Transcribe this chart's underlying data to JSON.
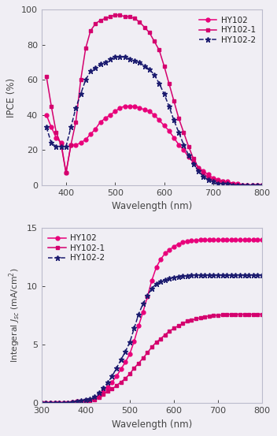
{
  "top": {
    "xlabel": "Wavelength (nm)",
    "ylabel": "IPCE (%)",
    "xlim": [
      350,
      800
    ],
    "ylim": [
      0,
      100
    ],
    "xticks": [
      400,
      500,
      600,
      700,
      800
    ],
    "yticks": [
      0,
      20,
      40,
      60,
      80,
      100
    ],
    "HY102": {
      "x": [
        360,
        370,
        380,
        390,
        400,
        410,
        420,
        430,
        440,
        450,
        460,
        470,
        480,
        490,
        500,
        510,
        520,
        530,
        540,
        550,
        560,
        570,
        580,
        590,
        600,
        610,
        620,
        630,
        640,
        650,
        660,
        670,
        680,
        690,
        700,
        710,
        720,
        730,
        740,
        750,
        760,
        770,
        780,
        790,
        800
      ],
      "y": [
        40,
        33,
        27,
        24,
        7,
        23,
        23,
        24,
        26,
        29,
        32,
        36,
        38,
        40,
        42,
        44,
        45,
        45,
        45,
        44,
        43,
        42,
        40,
        37,
        34,
        31,
        27,
        23,
        20,
        16,
        13,
        10,
        8,
        6,
        4,
        3,
        2,
        2,
        1,
        1,
        0,
        0,
        0,
        0,
        0
      ],
      "color": "#e8007a",
      "marker": "o",
      "linestyle": "-"
    },
    "HY102_1": {
      "x": [
        360,
        370,
        380,
        390,
        400,
        410,
        420,
        430,
        440,
        450,
        460,
        470,
        480,
        490,
        500,
        510,
        520,
        530,
        540,
        550,
        560,
        570,
        580,
        590,
        600,
        610,
        620,
        630,
        640,
        650,
        660,
        670,
        680,
        690,
        700,
        710,
        720,
        730,
        740,
        750,
        760,
        770,
        780,
        790,
        800
      ],
      "y": [
        62,
        45,
        30,
        23,
        7,
        23,
        36,
        60,
        78,
        88,
        92,
        94,
        95,
        96,
        97,
        97,
        96,
        96,
        95,
        93,
        90,
        87,
        82,
        77,
        68,
        58,
        48,
        38,
        30,
        22,
        15,
        10,
        7,
        4,
        3,
        2,
        2,
        1,
        1,
        0,
        0,
        0,
        0,
        0,
        0
      ],
      "color": "#d4006e",
      "marker": "s",
      "linestyle": "-"
    },
    "HY102_2": {
      "x": [
        360,
        370,
        380,
        390,
        400,
        410,
        420,
        430,
        440,
        450,
        460,
        470,
        480,
        490,
        500,
        510,
        520,
        530,
        540,
        550,
        560,
        570,
        580,
        590,
        600,
        610,
        620,
        630,
        640,
        650,
        660,
        670,
        680,
        690,
        700,
        710,
        720,
        730,
        740,
        750,
        760,
        770,
        780,
        790,
        800
      ],
      "y": [
        33,
        24,
        22,
        22,
        22,
        33,
        44,
        52,
        60,
        65,
        67,
        69,
        70,
        72,
        73,
        73,
        73,
        72,
        71,
        70,
        68,
        66,
        63,
        58,
        52,
        45,
        37,
        30,
        23,
        17,
        12,
        8,
        5,
        3,
        2,
        1,
        1,
        1,
        0,
        0,
        0,
        0,
        0,
        0,
        0
      ],
      "color": "#1a1a6e",
      "marker": "*",
      "linestyle": "--"
    }
  },
  "bottom": {
    "xlabel": "Wavelength (nm)",
    "ylabel": "Integeral $J_{sc}$ (mA/cm$^2$)",
    "xlim": [
      300,
      800
    ],
    "ylim": [
      0,
      15
    ],
    "xticks": [
      300,
      400,
      500,
      600,
      700,
      800
    ],
    "yticks": [
      0,
      5,
      10,
      15
    ],
    "HY102": {
      "x": [
        300,
        310,
        320,
        330,
        340,
        350,
        360,
        370,
        380,
        390,
        400,
        410,
        420,
        430,
        440,
        450,
        460,
        470,
        480,
        490,
        500,
        510,
        520,
        530,
        540,
        550,
        560,
        570,
        580,
        590,
        600,
        610,
        620,
        630,
        640,
        650,
        660,
        670,
        680,
        690,
        700,
        710,
        720,
        730,
        740,
        750,
        760,
        770,
        780,
        790,
        800
      ],
      "y": [
        0,
        0,
        0,
        0,
        0,
        0.02,
        0.05,
        0.1,
        0.15,
        0.18,
        0.2,
        0.25,
        0.4,
        0.65,
        1.0,
        1.35,
        1.8,
        2.3,
        2.9,
        3.5,
        4.2,
        5.3,
        6.6,
        7.8,
        9.1,
        10.5,
        11.6,
        12.3,
        12.8,
        13.1,
        13.4,
        13.6,
        13.75,
        13.85,
        13.9,
        13.93,
        13.95,
        13.95,
        13.95,
        13.95,
        13.95,
        13.95,
        13.95,
        13.95,
        13.95,
        13.95,
        13.95,
        13.95,
        13.95,
        13.95,
        13.95
      ],
      "color": "#e8007a",
      "marker": "o",
      "linestyle": "-"
    },
    "HY102_1": {
      "x": [
        300,
        310,
        320,
        330,
        340,
        350,
        360,
        370,
        380,
        390,
        400,
        410,
        420,
        430,
        440,
        450,
        460,
        470,
        480,
        490,
        500,
        510,
        520,
        530,
        540,
        550,
        560,
        570,
        580,
        590,
        600,
        610,
        620,
        630,
        640,
        650,
        660,
        670,
        680,
        690,
        700,
        710,
        720,
        730,
        740,
        750,
        760,
        770,
        780,
        790,
        800
      ],
      "y": [
        0,
        0,
        0,
        0,
        0,
        0.02,
        0.04,
        0.08,
        0.12,
        0.15,
        0.2,
        0.22,
        0.3,
        0.5,
        0.75,
        1.0,
        1.2,
        1.5,
        1.8,
        2.1,
        2.5,
        3.0,
        3.4,
        3.85,
        4.3,
        4.8,
        5.2,
        5.5,
        5.85,
        6.15,
        6.4,
        6.6,
        6.8,
        7.0,
        7.1,
        7.2,
        7.3,
        7.4,
        7.45,
        7.5,
        7.5,
        7.55,
        7.6,
        7.6,
        7.6,
        7.6,
        7.6,
        7.6,
        7.6,
        7.6,
        7.6
      ],
      "color": "#d4006e",
      "marker": "s",
      "linestyle": "-"
    },
    "HY102_2": {
      "x": [
        300,
        310,
        320,
        330,
        340,
        350,
        360,
        370,
        380,
        390,
        400,
        410,
        420,
        430,
        440,
        450,
        460,
        470,
        480,
        490,
        500,
        510,
        520,
        530,
        540,
        550,
        560,
        570,
        580,
        590,
        600,
        610,
        620,
        630,
        640,
        650,
        660,
        670,
        680,
        690,
        700,
        710,
        720,
        730,
        740,
        750,
        760,
        770,
        780,
        790,
        800
      ],
      "y": [
        0,
        0,
        0,
        0,
        0,
        0.02,
        0.05,
        0.1,
        0.17,
        0.22,
        0.28,
        0.35,
        0.55,
        0.9,
        1.3,
        1.75,
        2.3,
        3.0,
        3.7,
        4.4,
        5.2,
        6.4,
        7.6,
        8.5,
        9.2,
        9.8,
        10.2,
        10.4,
        10.55,
        10.65,
        10.75,
        10.8,
        10.85,
        10.9,
        10.93,
        10.95,
        10.95,
        10.95,
        10.95,
        10.95,
        10.95,
        10.95,
        10.95,
        10.95,
        10.95,
        10.95,
        10.95,
        10.95,
        10.95,
        10.95,
        10.95
      ],
      "color": "#1a1a6e",
      "marker": "*",
      "linestyle": "--"
    }
  },
  "bg_color": "#f0eef4",
  "spine_color": "#bbbbcc",
  "tick_color": "#444444",
  "label_color": "#222222"
}
